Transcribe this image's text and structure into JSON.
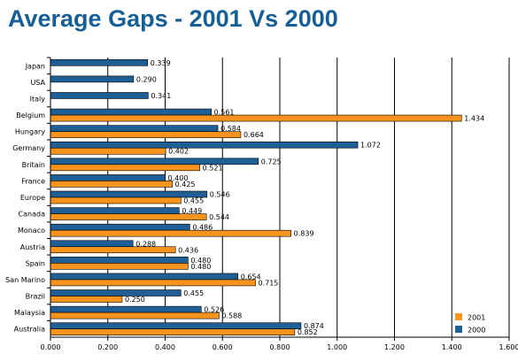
{
  "chart_data": {
    "type": "bar",
    "orientation": "horizontal",
    "title": "Average Gaps - 2001 Vs 2000",
    "xlabel": "",
    "ylabel": "",
    "xlim": [
      0,
      1.6
    ],
    "x_ticks": [
      "0.000",
      "0.200",
      "0.400",
      "0.600",
      "0.800",
      "1.000",
      "1.200",
      "1.400",
      "1.600"
    ],
    "grid": true,
    "legend_position": "bottom-right",
    "categories": [
      "Japan",
      "USA",
      "Italy",
      "Belgium",
      "Hungary",
      "Germany",
      "Britain",
      "France",
      "Europe",
      "Canada",
      "Monaco",
      "Austria",
      "Spain",
      "San Marino",
      "Brazil",
      "Malaysia",
      "Australia"
    ],
    "series": [
      {
        "name": "2000",
        "color": "#1f5f96",
        "values": [
          0.339,
          0.29,
          0.341,
          0.561,
          0.584,
          1.072,
          0.725,
          0.4,
          0.546,
          0.449,
          0.486,
          0.288,
          0.48,
          0.654,
          0.455,
          0.526,
          0.874
        ],
        "labels": [
          "0.339",
          "0.290",
          "0.341",
          "0.561",
          "0.584",
          "1.072",
          "0.725",
          "0.400",
          "0.546",
          "0.449",
          "0.486",
          "0.288",
          "0.480",
          "0.654",
          "0.455",
          "0.526",
          "0.874"
        ]
      },
      {
        "name": "2001",
        "color": "#f7941d",
        "values": [
          null,
          null,
          null,
          1.434,
          0.664,
          0.402,
          0.521,
          0.425,
          0.455,
          0.544,
          0.839,
          0.436,
          0.48,
          0.715,
          0.25,
          0.588,
          0.852
        ],
        "labels": [
          "",
          "",
          "",
          "1.434",
          "0.664",
          "0.402",
          "0.521",
          "0.425",
          "0.455",
          "0.544",
          "0.839",
          "0.436",
          "0.480",
          "0.715",
          "0.250",
          "0.588",
          "0.852"
        ]
      }
    ],
    "legend": [
      {
        "name": "2001",
        "color": "#f7941d"
      },
      {
        "name": "2000",
        "color": "#1f5f96"
      }
    ]
  }
}
